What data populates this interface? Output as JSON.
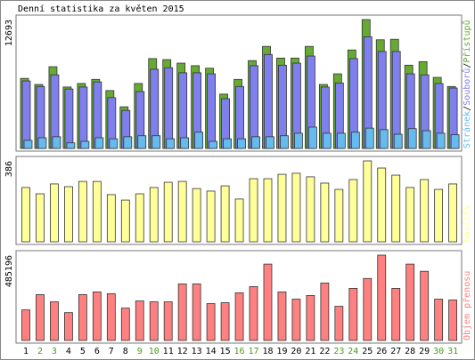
{
  "chart_data": {
    "type": "bar",
    "title": "Denní statistika za květen 2015",
    "categories": [
      "1",
      "2",
      "3",
      "4",
      "5",
      "6",
      "7",
      "8",
      "9",
      "10",
      "11",
      "12",
      "13",
      "14",
      "15",
      "16",
      "17",
      "18",
      "19",
      "20",
      "21",
      "22",
      "23",
      "24",
      "25",
      "26",
      "27",
      "28",
      "29",
      "30",
      "31"
    ],
    "category_colors": [
      "#000000",
      "#4a9a1a",
      "#4a9a1a",
      "#000000",
      "#000000",
      "#000000",
      "#000000",
      "#000000",
      "#4a9a1a",
      "#4a9a1a",
      "#000000",
      "#000000",
      "#000000",
      "#000000",
      "#000000",
      "#4a9a1a",
      "#4a9a1a",
      "#000000",
      "#000000",
      "#000000",
      "#000000",
      "#000000",
      "#4a9a1a",
      "#4a9a1a",
      "#000000",
      "#000000",
      "#000000",
      "#000000",
      "#000000",
      "#4a9a1a",
      "#4a9a1a"
    ],
    "legend": "right",
    "legend_separator": "/",
    "panels": [
      {
        "ylim": [
          0,
          12693
        ],
        "yticks": [
          12693
        ],
        "series": [
          {
            "name": "Přístupů",
            "color": "#66aa33",
            "values": [
              6900,
              6300,
              8050,
              6050,
              6400,
              6800,
              5700,
              4100,
              6400,
              8850,
              8750,
              8400,
              8150,
              7900,
              5350,
              6800,
              8650,
              10050,
              8900,
              8900,
              10050,
              6300,
              7350,
              9700,
              12693,
              10700,
              10750,
              8200,
              8550,
              7000,
              6100
            ]
          },
          {
            "name": "Souborů",
            "color": "#7f7fee",
            "values": [
              6650,
              6100,
              7250,
              5850,
              6050,
              6550,
              5000,
              3750,
              5600,
              7800,
              7950,
              7450,
              7450,
              7350,
              4900,
              6100,
              8150,
              9250,
              8200,
              8400,
              9100,
              6050,
              6450,
              8850,
              11000,
              9550,
              9550,
              7350,
              7250,
              6400,
              5950
            ]
          },
          {
            "name": "Stránek",
            "color": "#66bbee",
            "values": [
              800,
              1050,
              1150,
              550,
              700,
              1050,
              950,
              1150,
              1250,
              1250,
              950,
              1050,
              1600,
              700,
              950,
              950,
              1150,
              1150,
              1250,
              1500,
              2100,
              1500,
              1500,
              1600,
              2000,
              1850,
              1400,
              1950,
              1750,
              1500,
              1350
            ]
          }
        ]
      },
      {
        "ylim": [
          0,
          386
        ],
        "yticks": [
          386
        ],
        "series": [
          {
            "name": "Návštěv",
            "color": "#ffff99",
            "values": [
              259,
              229,
              276,
              263,
              288,
              288,
              225,
              199,
              229,
              259,
              284,
              288,
              254,
              242,
              267,
              204,
              301,
              301,
              322,
              327,
              310,
              280,
              250,
              297,
              386,
              352,
              318,
              259,
              297,
              250,
              276
            ]
          }
        ]
      },
      {
        "ylim": [
          0,
          485196
        ],
        "yticks": [
          485196
        ],
        "series": [
          {
            "name": "Objem přenosu",
            "color": "#ff8080",
            "values": [
              173600,
              260500,
              219600,
              158300,
              260500,
              275800,
              265600,
              183900,
              224700,
              219600,
              219600,
              321700,
              321700,
              209400,
              214500,
              270700,
              306400,
              434100,
              275800,
              234900,
              255400,
              326800,
              194100,
              296200,
              352400,
              485196,
              296200,
              434100,
              393200,
              234900,
              229800
            ]
          }
        ]
      }
    ]
  }
}
